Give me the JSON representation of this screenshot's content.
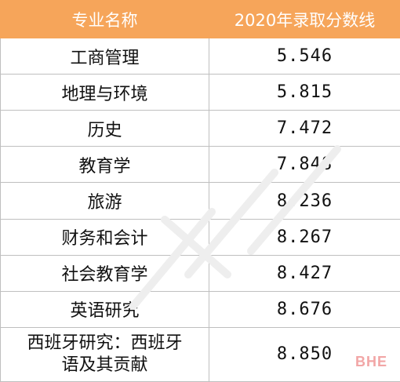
{
  "table": {
    "header": {
      "major": "专业名称",
      "score": "2020年录取分数线"
    },
    "rows": [
      {
        "major": "工商管理",
        "score": "5.546"
      },
      {
        "major": "地理与环境",
        "score": "5.815"
      },
      {
        "major": "历史",
        "score": "7.472"
      },
      {
        "major": "教育学",
        "score": "7.848"
      },
      {
        "major": "旅游",
        "score": "8.236"
      },
      {
        "major": "财务和会计",
        "score": "8.267"
      },
      {
        "major": "社会教育学",
        "score": "8.427"
      },
      {
        "major": "英语研究",
        "score": "8.676"
      },
      {
        "major_line1": "西班牙研究：西班牙",
        "major_line2": "语及其贡献",
        "score": "8.850"
      }
    ]
  },
  "logo": {
    "text": "BHE",
    "color": "#f2a6a6"
  },
  "colors": {
    "header_bg": "#f6a55a",
    "header_text": "#ffffff",
    "border": "#bfbfbf"
  }
}
